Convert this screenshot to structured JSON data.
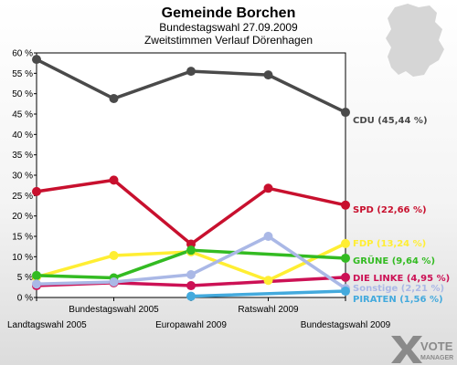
{
  "title": "Gemeinde Borchen",
  "subtitle1": "Bundestagswahl 27.09.2009",
  "subtitle2": "Zweitstimmen Verlauf Dörenhagen",
  "logo": {
    "line1": "VOTE",
    "line2": "MANAGER"
  },
  "chart_data": {
    "type": "line",
    "title": "Gemeinde Borchen",
    "categories": [
      "Landtagswahl 2005",
      "Bundestagswahl 2005",
      "Europawahl 2009",
      "Ratswahl 2009",
      "Bundestagswahl 2009"
    ],
    "ylim": [
      0,
      60
    ],
    "yticks": [
      0,
      5,
      10,
      15,
      20,
      25,
      30,
      35,
      40,
      45,
      50,
      55,
      60
    ],
    "ytick_suffix": " %",
    "grid": false,
    "series": [
      {
        "name": "CDU",
        "label": "CDU (45,44 %)",
        "color": "#4a4a4a",
        "values": [
          58.4,
          48.8,
          55.5,
          54.6,
          45.44
        ]
      },
      {
        "name": "SPD",
        "label": "SPD (22,66 %)",
        "color": "#c8102e",
        "values": [
          26.0,
          28.8,
          13.1,
          26.8,
          22.66
        ]
      },
      {
        "name": "FDP",
        "label": "FDP (13,24 %)",
        "color": "#ffee33",
        "values": [
          5.0,
          10.3,
          11.2,
          4.2,
          13.24
        ]
      },
      {
        "name": "GRÜNE",
        "label": "GRÜNE (9,64 %)",
        "color": "#33bb22",
        "values": [
          5.4,
          4.8,
          11.6,
          null,
          9.64
        ]
      },
      {
        "name": "DIE LINKE",
        "label": "DIE LINKE (4,95 %)",
        "color": "#cc1155",
        "values": [
          2.9,
          3.6,
          2.9,
          null,
          4.95
        ]
      },
      {
        "name": "Sonstige",
        "label": "Sonstige (2,21 %)",
        "color": "#aab8e6",
        "values": [
          3.3,
          3.8,
          5.6,
          15.0,
          2.21
        ]
      },
      {
        "name": "PIRATEN",
        "label": "PIRATEN (1,56 %)",
        "color": "#44aadd",
        "values": [
          null,
          null,
          0.3,
          null,
          1.56
        ]
      }
    ]
  }
}
